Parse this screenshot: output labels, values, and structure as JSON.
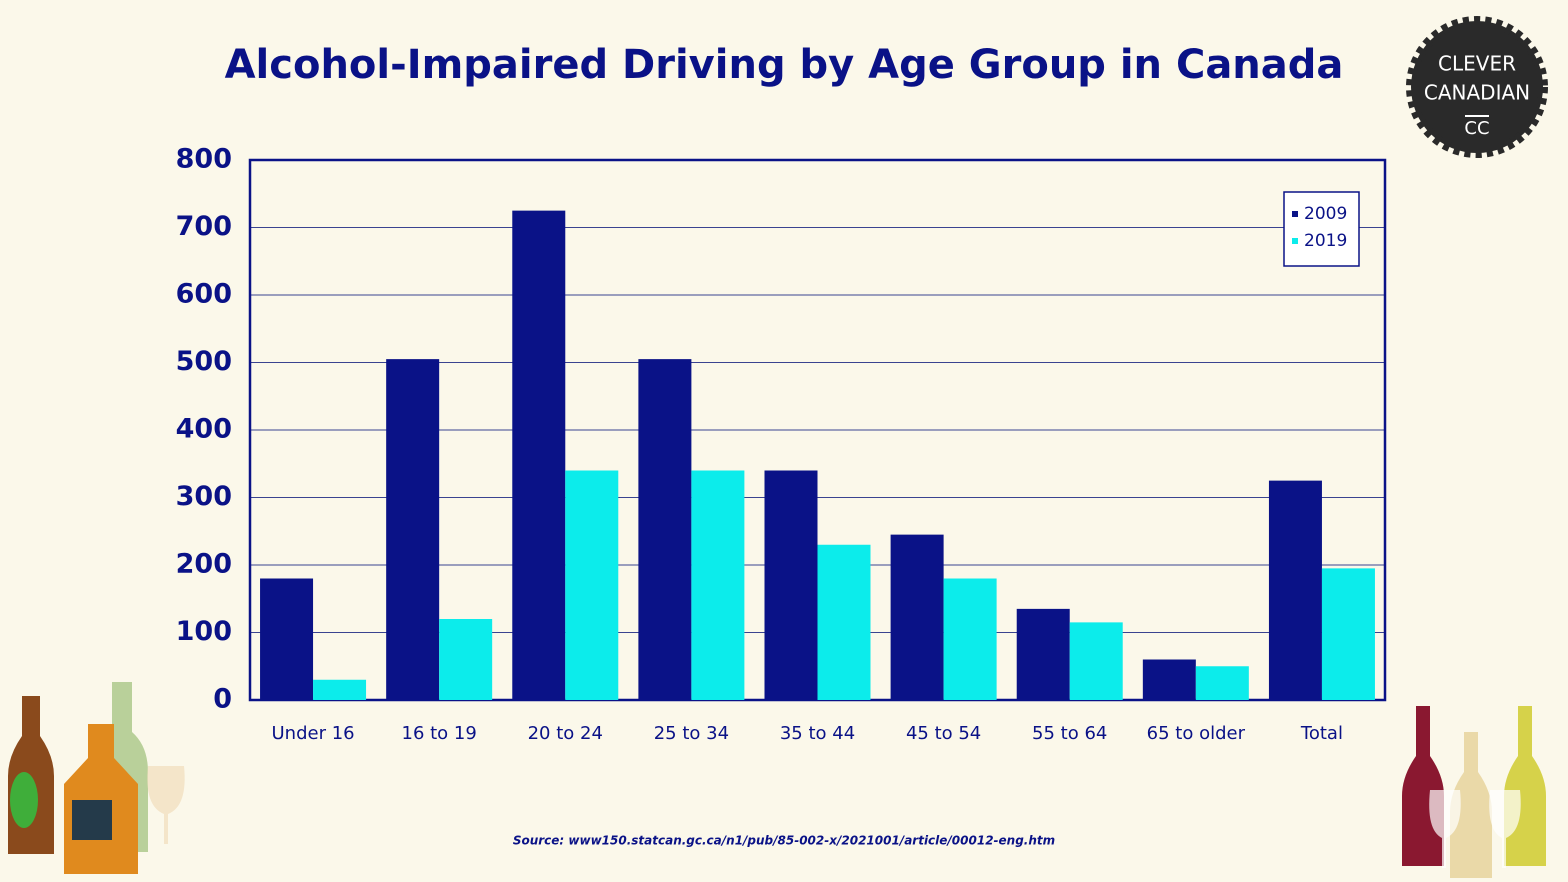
{
  "chart_data": {
    "type": "bar",
    "title": "Alcohol-Impaired Driving by Age Group in Canada",
    "categories": [
      "Under 16",
      "16 to 19",
      "20 to 24",
      "25 to 34",
      "35 to 44",
      "45 to 54",
      "55 to 64",
      "65 to older",
      "Total"
    ],
    "series": [
      {
        "name": "2009",
        "color": "#0a1287",
        "values": [
          180,
          505,
          725,
          505,
          340,
          245,
          135,
          60,
          325
        ]
      },
      {
        "name": "2019",
        "color": "#0ceceb",
        "values": [
          30,
          120,
          340,
          340,
          230,
          180,
          115,
          50,
          195
        ]
      }
    ],
    "ylim": [
      0,
      800
    ],
    "yticks": [
      0,
      100,
      200,
      300,
      400,
      500,
      600,
      700,
      800
    ],
    "grid": true,
    "legend": "upper right",
    "source": "Source: www150.statcan.gc.ca/n1/pub/85-002-x/2021001/article/00012-eng.htm"
  },
  "logo": {
    "lines": [
      "CLEVER",
      "CANADIAN",
      "CC"
    ]
  }
}
